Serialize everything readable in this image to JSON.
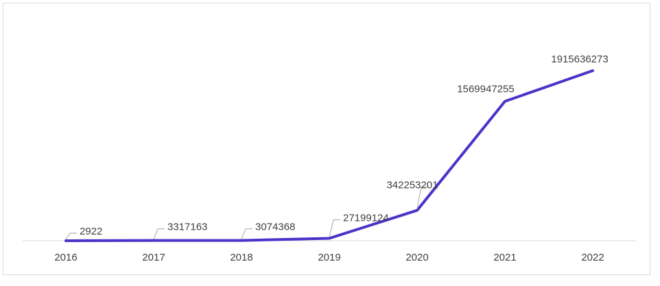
{
  "chart_data": {
    "type": "line",
    "categories": [
      "2016",
      "2017",
      "2018",
      "2019",
      "2020",
      "2021",
      "2022"
    ],
    "series": [
      {
        "color": "#4b33c8",
        "values": [
          2922,
          3317163,
          3074368,
          27199124,
          342253201,
          1569947255,
          1915636273
        ]
      }
    ]
  }
}
